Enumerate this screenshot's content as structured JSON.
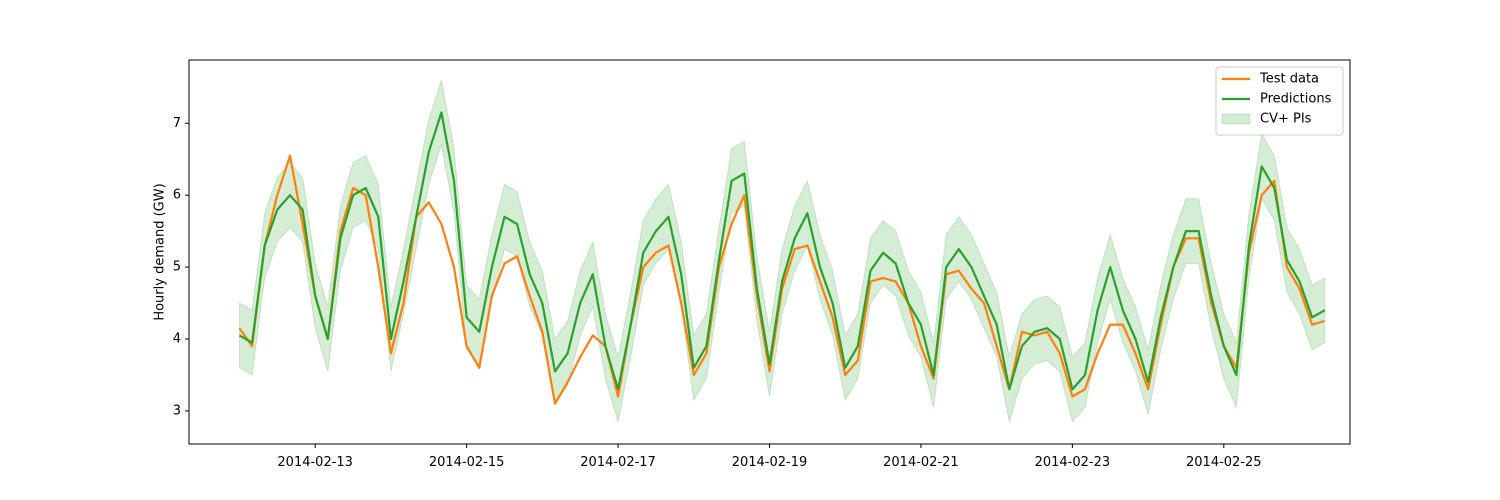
{
  "chart_data": {
    "type": "line",
    "ylabel": "Hourly demand (GW)",
    "x": [
      0,
      4,
      8,
      12,
      16,
      20,
      24,
      28,
      32,
      36,
      40,
      44,
      48,
      52,
      56,
      60,
      64,
      68,
      72,
      76,
      80,
      84,
      88,
      92,
      96,
      100,
      104,
      108,
      112,
      116,
      120,
      124,
      128,
      132,
      136,
      140,
      144,
      148,
      152,
      156,
      160,
      164,
      168,
      172,
      176,
      180,
      184,
      188,
      192,
      196,
      200,
      204,
      208,
      212,
      216,
      220,
      224,
      228,
      232,
      236,
      240,
      244,
      248,
      252,
      256,
      260,
      264,
      268,
      272,
      276,
      280,
      284,
      288,
      292,
      296,
      300,
      304,
      308,
      312,
      316,
      320,
      324,
      328,
      332,
      336,
      340,
      344
    ],
    "xlim": [
      -16,
      352
    ],
    "xticks": [
      {
        "value": 24,
        "label": "2014-02-13"
      },
      {
        "value": 72,
        "label": "2014-02-15"
      },
      {
        "value": 120,
        "label": "2014-02-17"
      },
      {
        "value": 168,
        "label": "2014-02-19"
      },
      {
        "value": 216,
        "label": "2014-02-21"
      },
      {
        "value": 264,
        "label": "2014-02-23"
      },
      {
        "value": 312,
        "label": "2014-02-25"
      }
    ],
    "ylim": [
      2.54,
      7.88
    ],
    "yticks": [
      3,
      4,
      5,
      6,
      7
    ],
    "legend": "upper right",
    "band": {
      "name": "CV+ PIs",
      "color": "#2ca02c",
      "lower": [
        3.6,
        3.5,
        4.85,
        5.35,
        5.55,
        5.35,
        4.15,
        3.55,
        4.95,
        5.55,
        5.65,
        5.25,
        3.55,
        4.35,
        5.25,
        6.15,
        6.7,
        5.75,
        3.85,
        3.65,
        4.55,
        5.25,
        5.15,
        4.45,
        4.05,
        3.1,
        3.35,
        4.05,
        4.45,
        3.45,
        2.85,
        3.75,
        4.75,
        5.05,
        5.25,
        4.45,
        3.15,
        3.45,
        4.65,
        5.75,
        5.85,
        4.25,
        3.2,
        4.35,
        4.95,
        5.3,
        4.55,
        4.05,
        3.15,
        3.45,
        4.5,
        4.75,
        4.6,
        4.05,
        3.75,
        3.05,
        4.55,
        4.8,
        4.55,
        4.15,
        3.75,
        2.85,
        3.45,
        3.65,
        3.7,
        3.55,
        2.85,
        3.05,
        3.95,
        4.55,
        3.95,
        3.55,
        2.95,
        3.85,
        4.55,
        5.05,
        5.05,
        4.15,
        3.45,
        3.05,
        4.85,
        5.95,
        5.65,
        4.65,
        4.35,
        3.85,
        3.95
      ],
      "upper": [
        4.5,
        4.4,
        5.75,
        6.25,
        6.45,
        6.25,
        5.05,
        4.45,
        5.85,
        6.45,
        6.55,
        6.15,
        4.45,
        5.25,
        6.15,
        7.05,
        7.6,
        6.65,
        4.75,
        4.55,
        5.45,
        6.15,
        6.05,
        5.35,
        4.95,
        4.0,
        4.25,
        4.95,
        5.35,
        4.35,
        3.75,
        4.65,
        5.65,
        5.95,
        6.15,
        5.35,
        4.05,
        4.35,
        5.55,
        6.65,
        6.75,
        5.15,
        4.1,
        5.25,
        5.85,
        6.2,
        5.45,
        4.95,
        4.05,
        4.35,
        5.4,
        5.65,
        5.5,
        4.95,
        4.65,
        3.95,
        5.45,
        5.7,
        5.45,
        5.05,
        4.65,
        3.75,
        4.35,
        4.55,
        4.6,
        4.45,
        3.75,
        3.95,
        4.85,
        5.45,
        4.85,
        4.45,
        3.85,
        4.75,
        5.45,
        5.95,
        5.95,
        5.05,
        4.35,
        3.95,
        5.75,
        6.85,
        6.55,
        5.55,
        5.25,
        4.75,
        4.85
      ]
    },
    "series": [
      {
        "name": "Test data",
        "color": "#ff7f0e",
        "values": [
          4.15,
          3.9,
          5.3,
          6.0,
          6.55,
          5.6,
          4.6,
          4.0,
          5.5,
          6.1,
          6.0,
          5.0,
          3.8,
          4.5,
          5.7,
          5.9,
          5.6,
          5.0,
          3.9,
          3.6,
          4.6,
          5.05,
          5.15,
          4.6,
          4.1,
          3.1,
          3.4,
          3.75,
          4.05,
          3.9,
          3.2,
          4.2,
          5.0,
          5.2,
          5.3,
          4.5,
          3.5,
          3.8,
          5.0,
          5.6,
          6.0,
          4.6,
          3.55,
          4.7,
          5.25,
          5.3,
          4.8,
          4.3,
          3.5,
          3.7,
          4.8,
          4.85,
          4.8,
          4.5,
          3.9,
          3.45,
          4.9,
          4.95,
          4.7,
          4.5,
          3.9,
          3.3,
          4.1,
          4.05,
          4.1,
          3.8,
          3.2,
          3.3,
          3.8,
          4.2,
          4.2,
          3.8,
          3.3,
          4.2,
          5.0,
          5.4,
          5.4,
          4.5,
          3.9,
          3.6,
          5.2,
          6.0,
          6.2,
          5.0,
          4.7,
          4.2,
          4.25
        ]
      },
      {
        "name": "Predictions",
        "color": "#2ca02c",
        "values": [
          4.05,
          3.95,
          5.3,
          5.8,
          6.0,
          5.8,
          4.6,
          4.0,
          5.4,
          6.0,
          6.1,
          5.7,
          4.0,
          4.8,
          5.7,
          6.6,
          7.15,
          6.2,
          4.3,
          4.1,
          5.0,
          5.7,
          5.6,
          4.9,
          4.5,
          3.55,
          3.8,
          4.5,
          4.9,
          3.9,
          3.3,
          4.2,
          5.2,
          5.5,
          5.7,
          4.9,
          3.6,
          3.9,
          5.1,
          6.2,
          6.3,
          4.7,
          3.65,
          4.8,
          5.4,
          5.75,
          5.0,
          4.5,
          3.6,
          3.9,
          4.95,
          5.2,
          5.05,
          4.5,
          4.2,
          3.5,
          5.0,
          5.25,
          5.0,
          4.6,
          4.2,
          3.3,
          3.9,
          4.1,
          4.15,
          4.0,
          3.3,
          3.5,
          4.4,
          5.0,
          4.4,
          4.0,
          3.4,
          4.3,
          5.0,
          5.5,
          5.5,
          4.6,
          3.9,
          3.5,
          5.3,
          6.4,
          6.1,
          5.1,
          4.8,
          4.3,
          4.4
        ]
      }
    ]
  }
}
